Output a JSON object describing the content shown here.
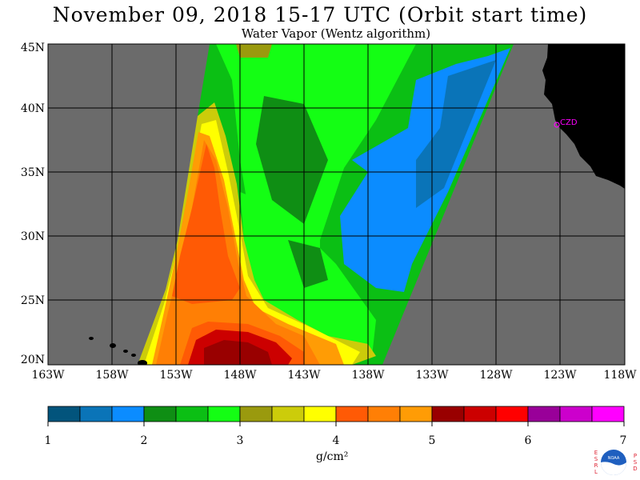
{
  "header": {
    "title": "November 09, 2018  15-17 UTC  (Orbit start time)",
    "subtitle": "Water Vapor (Wentz algorithm)"
  },
  "map": {
    "lat_labels": [
      "45N",
      "40N",
      "35N",
      "30N",
      "25N",
      "20N"
    ],
    "lon_labels": [
      "163W",
      "158W",
      "153W",
      "148W",
      "143W",
      "138W",
      "133W",
      "128W",
      "123W",
      "118W"
    ],
    "station_label": "CZD",
    "colors": {
      "no_data": "#6b6b6b",
      "land": "#000000",
      "grid": "#000000",
      "station": "#ff00ff"
    }
  },
  "colorbar": {
    "labels": [
      "1",
      "2",
      "3",
      "4",
      "5",
      "6",
      "7"
    ],
    "units": "g/cm²",
    "colors": [
      "#02547c",
      "#0a74b8",
      "#0b8cff",
      "#0f8e14",
      "#0bbf14",
      "#14fe14",
      "#9a9a0e",
      "#cccc0a",
      "#ffff00",
      "#ff5a05",
      "#ff7f05",
      "#ff9c05",
      "#990000",
      "#cc0000",
      "#ff0000",
      "#990099",
      "#cc00cc",
      "#ff00ff"
    ]
  },
  "logo": {
    "name": "noaa-logo",
    "left_letters": "ESRL",
    "right_letters": "PSD"
  }
}
